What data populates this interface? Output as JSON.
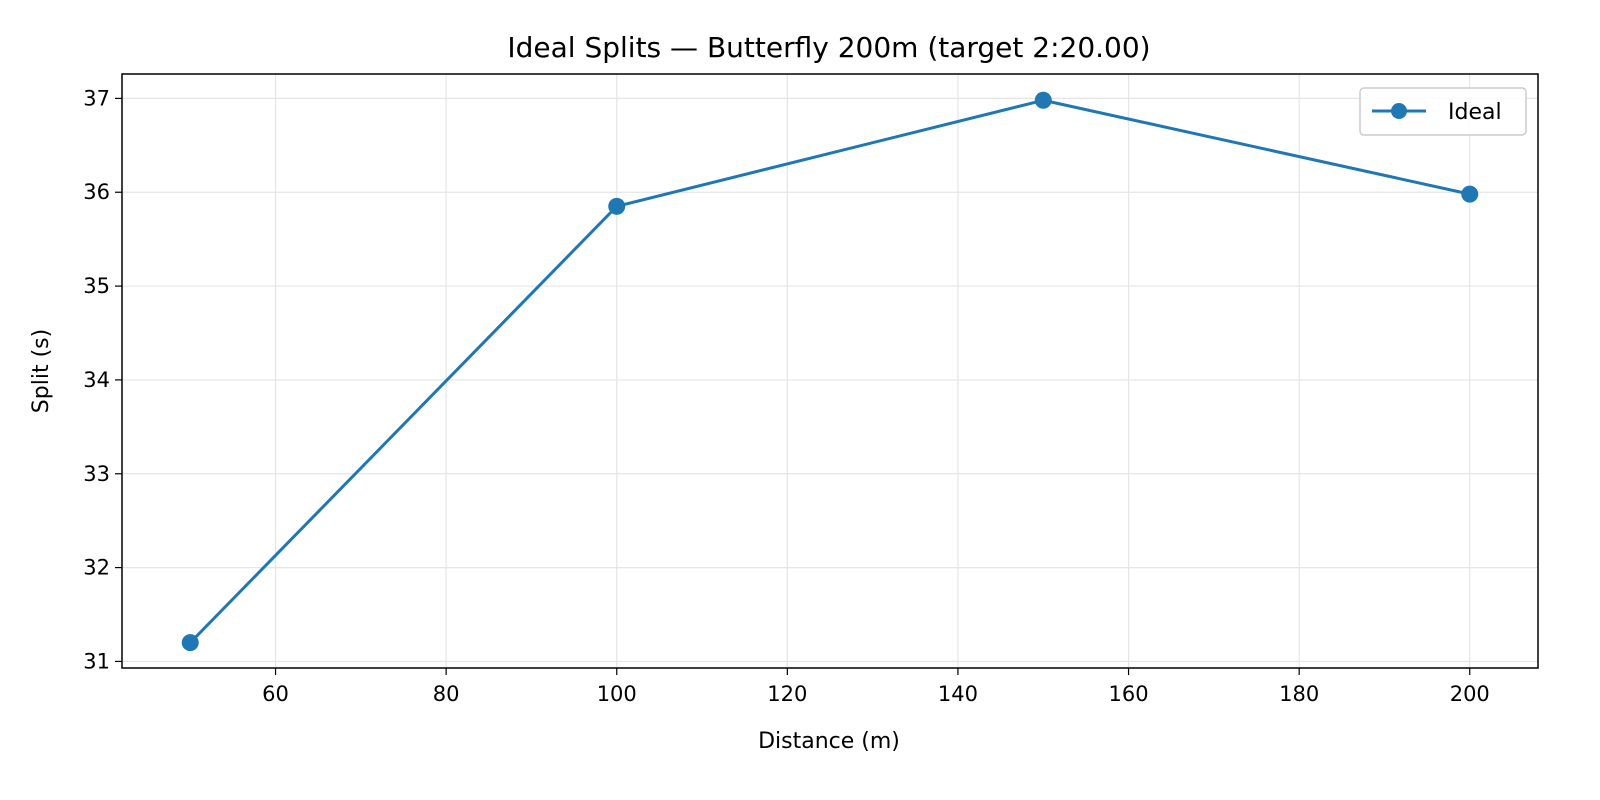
{
  "chart_data": {
    "type": "line",
    "title": "Ideal Splits — Butterfly 200m (target 2:20.00)",
    "xlabel": "Distance (m)",
    "ylabel": "Split (s)",
    "xlim": [
      42,
      208
    ],
    "ylim": [
      30.93,
      37.26
    ],
    "xticks": [
      60,
      80,
      100,
      120,
      140,
      160,
      180,
      200
    ],
    "yticks": [
      31,
      32,
      33,
      34,
      35,
      36,
      37
    ],
    "grid": true,
    "legend_position": "top-right",
    "series": [
      {
        "name": "Ideal",
        "color": "#1f77b4",
        "marker": "circle",
        "x": [
          50,
          100,
          150,
          200
        ],
        "y": [
          31.2,
          35.85,
          36.98,
          35.98
        ]
      }
    ]
  }
}
